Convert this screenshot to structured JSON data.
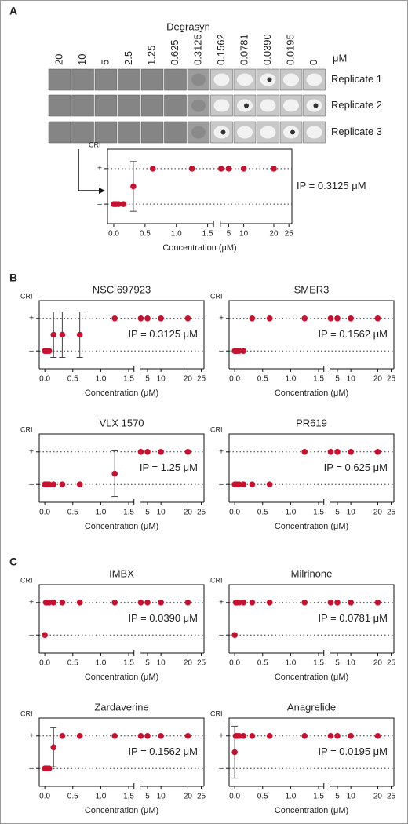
{
  "panels": [
    "A",
    "B",
    "C"
  ],
  "image_grid": {
    "title": "Degrasyn",
    "columns": [
      "20",
      "10",
      "5",
      "2.5",
      "1.25",
      "0.625",
      "0.3125",
      "0.1562",
      "0.0781",
      "0.0390",
      "0.0195",
      "0"
    ],
    "unit": "μM",
    "rows": [
      "Replicate 1",
      "Replicate 2",
      "Replicate 3"
    ]
  },
  "chart_data": [
    {
      "type": "scatter",
      "xlabel": "Concentration (μM)",
      "ylabel": "CRI",
      "annotation": "IP = 0.3125 μM",
      "color": "#c41230",
      "x": [
        0,
        0.0195,
        0.039,
        0.0781,
        0.1562,
        0.3125,
        0.625,
        1.25,
        2.5,
        5,
        10,
        20
      ],
      "values": [
        0,
        0,
        0,
        0,
        0,
        0.5,
        1,
        1,
        1,
        1,
        1,
        1
      ],
      "errors": [
        null,
        null,
        null,
        null,
        null,
        0.7,
        null,
        null,
        null,
        null,
        null,
        null
      ],
      "xlim_segments": [
        [
          -0.1,
          1.55
        ],
        [
          1.5,
          26
        ]
      ],
      "xticks": [
        {
          "value": 0,
          "label": "0.0"
        },
        {
          "value": 0.5,
          "label": "0.5"
        },
        {
          "value": 1,
          "label": "1.0"
        },
        {
          "value": 1.5,
          "label": "1.5"
        },
        5,
        10,
        20,
        25
      ],
      "ylim": [
        -0.55,
        1.55
      ],
      "yticks": [
        {
          "value": 0,
          "label": "–"
        },
        {
          "value": 1,
          "label": "+"
        }
      ],
      "grid": true
    },
    {
      "type": "scatter",
      "title": "NSC 697923",
      "xlabel": "Concentration (μM)",
      "ylabel": "CRI",
      "annotation": "IP = 0.3125 μM",
      "color": "#c41230",
      "x": [
        0,
        0.0195,
        0.039,
        0.0781,
        0.1562,
        0.3125,
        0.625,
        1.25,
        2.5,
        5,
        10,
        20
      ],
      "values": [
        0,
        0,
        0,
        0,
        0.5,
        0.5,
        0.5,
        1,
        1,
        1,
        1,
        1
      ],
      "errors": [
        null,
        null,
        null,
        null,
        0.7,
        0.7,
        0.7,
        null,
        null,
        null,
        null,
        null
      ],
      "xlim_segments": [
        [
          -0.1,
          1.55
        ],
        [
          1.5,
          26
        ]
      ],
      "xticks": [
        {
          "value": 0,
          "label": "0.0"
        },
        {
          "value": 0.5,
          "label": "0.5"
        },
        {
          "value": 1,
          "label": "1.0"
        },
        {
          "value": 1.5,
          "label": "1.5"
        },
        5,
        10,
        20,
        25
      ],
      "ylim": [
        -0.55,
        1.55
      ],
      "yticks": [
        {
          "value": 0,
          "label": "–"
        },
        {
          "value": 1,
          "label": "+"
        }
      ],
      "grid": true
    },
    {
      "type": "scatter",
      "title": "SMER3",
      "xlabel": "Concentration (μM)",
      "ylabel": "CRI",
      "annotation": "IP = 0.1562 μM",
      "color": "#c41230",
      "x": [
        0,
        0.0195,
        0.039,
        0.0781,
        0.1562,
        0.3125,
        0.625,
        1.25,
        2.5,
        5,
        10,
        20
      ],
      "values": [
        0,
        0,
        0,
        0,
        0,
        1,
        1,
        1,
        1,
        1,
        1,
        1
      ],
      "errors": [
        null,
        null,
        null,
        null,
        null,
        null,
        null,
        null,
        null,
        null,
        null,
        null
      ],
      "xlim_segments": [
        [
          -0.1,
          1.55
        ],
        [
          1.5,
          26
        ]
      ],
      "xticks": [
        {
          "value": 0,
          "label": "0.0"
        },
        {
          "value": 0.5,
          "label": "0.5"
        },
        {
          "value": 1,
          "label": "1.0"
        },
        {
          "value": 1.5,
          "label": "1.5"
        },
        5,
        10,
        20,
        25
      ],
      "ylim": [
        -0.55,
        1.55
      ],
      "yticks": [
        {
          "value": 0,
          "label": "–"
        },
        {
          "value": 1,
          "label": "+"
        }
      ],
      "grid": true
    },
    {
      "type": "scatter",
      "title": "VLX 1570",
      "xlabel": "Concentration (μM)",
      "ylabel": "CRI",
      "annotation": "IP = 1.25 μM",
      "color": "#c41230",
      "x": [
        0,
        0.0195,
        0.039,
        0.0781,
        0.1562,
        0.3125,
        0.625,
        1.25,
        2.5,
        5,
        10,
        20
      ],
      "values": [
        0,
        0,
        0,
        0,
        0,
        0,
        0,
        0.33,
        1,
        1,
        1,
        1
      ],
      "errors": [
        null,
        null,
        null,
        null,
        null,
        null,
        null,
        0.7,
        null,
        null,
        null,
        null
      ],
      "xlim_segments": [
        [
          -0.1,
          1.55
        ],
        [
          1.5,
          26
        ]
      ],
      "xticks": [
        {
          "value": 0,
          "label": "0.0"
        },
        {
          "value": 0.5,
          "label": "0.5"
        },
        {
          "value": 1,
          "label": "1.0"
        },
        {
          "value": 1.5,
          "label": "1.5"
        },
        5,
        10,
        20,
        25
      ],
      "ylim": [
        -0.55,
        1.55
      ],
      "yticks": [
        {
          "value": 0,
          "label": "–"
        },
        {
          "value": 1,
          "label": "+"
        }
      ],
      "grid": true
    },
    {
      "type": "scatter",
      "title": "PR619",
      "xlabel": "Concentration (μM)",
      "ylabel": "CRI",
      "annotation": "IP = 0.625 μM",
      "color": "#c41230",
      "x": [
        0,
        0.0195,
        0.039,
        0.0781,
        0.1562,
        0.3125,
        0.625,
        1.25,
        2.5,
        5,
        10,
        20
      ],
      "values": [
        0,
        0,
        0,
        0,
        0,
        0,
        0,
        1,
        1,
        1,
        1,
        1
      ],
      "errors": [
        null,
        null,
        null,
        null,
        null,
        null,
        null,
        null,
        null,
        null,
        null,
        null
      ],
      "xlim_segments": [
        [
          -0.1,
          1.55
        ],
        [
          1.5,
          26
        ]
      ],
      "xticks": [
        {
          "value": 0,
          "label": "0.0"
        },
        {
          "value": 0.5,
          "label": "0.5"
        },
        {
          "value": 1,
          "label": "1.0"
        },
        {
          "value": 1.5,
          "label": "1.5"
        },
        5,
        10,
        20,
        25
      ],
      "ylim": [
        -0.55,
        1.55
      ],
      "yticks": [
        {
          "value": 0,
          "label": "–"
        },
        {
          "value": 1,
          "label": "+"
        }
      ],
      "grid": true
    },
    {
      "type": "scatter",
      "title": "IMBX",
      "xlabel": "Concentration (μM)",
      "ylabel": "CRI",
      "annotation": "IP = 0.0390 μM",
      "color": "#c41230",
      "x": [
        0,
        0.0195,
        0.039,
        0.0781,
        0.1562,
        0.3125,
        0.625,
        1.25,
        2.5,
        5,
        10,
        20
      ],
      "values": [
        0,
        1,
        1,
        1,
        1,
        1,
        1,
        1,
        1,
        1,
        1,
        1
      ],
      "errors": [
        null,
        null,
        null,
        null,
        null,
        null,
        null,
        null,
        null,
        null,
        null,
        null
      ],
      "xlim_segments": [
        [
          -0.1,
          1.55
        ],
        [
          1.5,
          26
        ]
      ],
      "xticks": [
        {
          "value": 0,
          "label": "0.0"
        },
        {
          "value": 0.5,
          "label": "0.5"
        },
        {
          "value": 1,
          "label": "1.0"
        },
        {
          "value": 1.5,
          "label": "1.5"
        },
        5,
        10,
        20,
        25
      ],
      "ylim": [
        -0.55,
        1.55
      ],
      "yticks": [
        {
          "value": 0,
          "label": "–"
        },
        {
          "value": 1,
          "label": "+"
        }
      ],
      "grid": true
    },
    {
      "type": "scatter",
      "title": "Milrinone",
      "xlabel": "Concentration (μM)",
      "ylabel": "CRI",
      "annotation": "IP = 0.0781 μM",
      "color": "#c41230",
      "x": [
        0,
        0.0195,
        0.039,
        0.0781,
        0.1562,
        0.3125,
        0.625,
        1.25,
        2.5,
        5,
        10,
        20
      ],
      "values": [
        0,
        1,
        1,
        1,
        1,
        1,
        1,
        1,
        1,
        1,
        1,
        1
      ],
      "errors": [
        null,
        null,
        null,
        null,
        null,
        null,
        null,
        null,
        null,
        null,
        null,
        null
      ],
      "xlim_segments": [
        [
          -0.1,
          1.55
        ],
        [
          1.5,
          26
        ]
      ],
      "xticks": [
        {
          "value": 0,
          "label": "0.0"
        },
        {
          "value": 0.5,
          "label": "0.5"
        },
        {
          "value": 1,
          "label": "1.0"
        },
        {
          "value": 1.5,
          "label": "1.5"
        },
        5,
        10,
        20,
        25
      ],
      "ylim": [
        -0.55,
        1.55
      ],
      "yticks": [
        {
          "value": 0,
          "label": "–"
        },
        {
          "value": 1,
          "label": "+"
        }
      ],
      "grid": true
    },
    {
      "type": "scatter",
      "title": "Zardaverine",
      "xlabel": "Concentration (μM)",
      "ylabel": "CRI",
      "annotation": "IP = 0.1562 μM",
      "color": "#c41230",
      "x": [
        0,
        0.0195,
        0.039,
        0.0781,
        0.1562,
        0.3125,
        0.625,
        1.25,
        2.5,
        5,
        10,
        20
      ],
      "values": [
        0,
        0,
        0,
        0,
        0.65,
        1,
        1,
        1,
        1,
        1,
        1,
        1
      ],
      "errors": [
        null,
        null,
        null,
        null,
        0.6,
        null,
        null,
        null,
        null,
        null,
        null,
        null
      ],
      "xlim_segments": [
        [
          -0.1,
          1.55
        ],
        [
          1.5,
          26
        ]
      ],
      "xticks": [
        {
          "value": 0,
          "label": "0.0"
        },
        {
          "value": 0.5,
          "label": "0.5"
        },
        {
          "value": 1,
          "label": "1.0"
        },
        {
          "value": 1.5,
          "label": "1.5"
        },
        5,
        10,
        20,
        25
      ],
      "ylim": [
        -0.55,
        1.55
      ],
      "yticks": [
        {
          "value": 0,
          "label": "–"
        },
        {
          "value": 1,
          "label": "+"
        }
      ],
      "grid": true
    },
    {
      "type": "scatter",
      "title": "Anagrelide",
      "xlabel": "Concentration (μM)",
      "ylabel": "CRI",
      "annotation": "IP = 0.0195 μM",
      "color": "#c41230",
      "x": [
        0,
        0.0195,
        0.039,
        0.0781,
        0.1562,
        0.3125,
        0.625,
        1.25,
        2.5,
        5,
        10,
        20
      ],
      "values": [
        0.5,
        1,
        1,
        1,
        1,
        1,
        1,
        1,
        1,
        1,
        1,
        1
      ],
      "errors": [
        0.8,
        null,
        null,
        null,
        null,
        null,
        null,
        null,
        null,
        null,
        null,
        null
      ],
      "xlim_segments": [
        [
          -0.1,
          1.55
        ],
        [
          1.5,
          26
        ]
      ],
      "xticks": [
        {
          "value": 0,
          "label": "0.0"
        },
        {
          "value": 0.5,
          "label": "0.5"
        },
        {
          "value": 1,
          "label": "1.0"
        },
        {
          "value": 1.5,
          "label": "1.5"
        },
        5,
        10,
        20,
        25
      ],
      "ylim": [
        -0.55,
        1.55
      ],
      "yticks": [
        {
          "value": 0,
          "label": "–"
        },
        {
          "value": 1,
          "label": "+"
        }
      ],
      "grid": true
    }
  ]
}
